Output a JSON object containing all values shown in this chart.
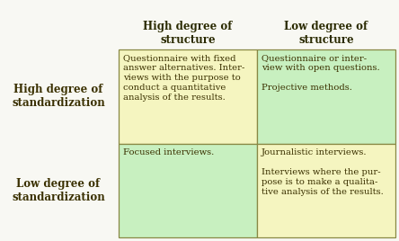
{
  "bg_color": "#f8f8f3",
  "header_left": "High degree of\nstructure",
  "header_right": "Low degree of\nstructure",
  "row_label_top": "High degree of\nstandardization",
  "row_label_bottom": "Low degree of\nstandardization",
  "cell_top_left_text": "Questionnaire with fixed\nanswer alternatives. Inter-\nviews with the purpose to\nconduct a quantitative\nanalysis of the results.",
  "cell_top_right_text": "Questionnaire or inter-\nview with open questions.\n\nProjective methods.",
  "cell_bottom_left_text": "Focused interviews.",
  "cell_bottom_right_text": "Journalistic interviews.\n\nInterviews where the pur-\npose is to make a qualita-\ntive analysis of the results.",
  "cell_top_left_color": "#f5f5c0",
  "cell_top_right_color": "#c8f0c0",
  "cell_bottom_left_color": "#c8f0c0",
  "cell_bottom_right_color": "#f5f5c0",
  "border_color": "#888844",
  "header_fontsize": 8.5,
  "cell_fontsize": 7.2,
  "row_label_fontsize": 8.5,
  "text_color": "#3a3000",
  "header_text_color": "#2a2a00"
}
